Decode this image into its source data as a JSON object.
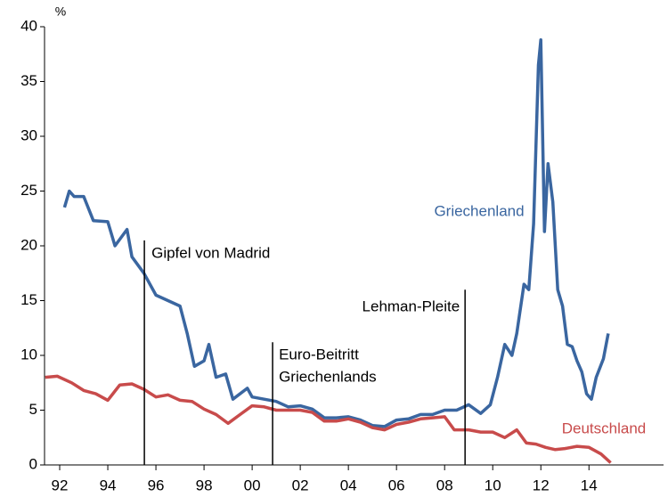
{
  "chart_data": {
    "type": "line",
    "y_label": "%",
    "xlim": [
      1991.37,
      2017.1
    ],
    "ylim": [
      0,
      40
    ],
    "yticks": [
      0,
      5,
      10,
      15,
      20,
      25,
      30,
      35,
      40
    ],
    "xticks": [
      {
        "value": 1992,
        "label": "92"
      },
      {
        "value": 1994,
        "label": "94"
      },
      {
        "value": 1996,
        "label": "96"
      },
      {
        "value": 1998,
        "label": "98"
      },
      {
        "value": 2000,
        "label": "00"
      },
      {
        "value": 2002,
        "label": "02"
      },
      {
        "value": 2004,
        "label": "04"
      },
      {
        "value": 2006,
        "label": "06"
      },
      {
        "value": 2008,
        "label": "08"
      },
      {
        "value": 2010,
        "label": "10"
      },
      {
        "value": 2012,
        "label": "12"
      },
      {
        "value": 2014,
        "label": "14"
      }
    ],
    "series": [
      {
        "name": "Griechenland",
        "color": "#3a66a0",
        "x": [
          1992.2,
          1992.4,
          1992.6,
          1993,
          1993.4,
          1994,
          1994.3,
          1994.8,
          1995,
          1995.5,
          1996,
          1996.5,
          1997,
          1997.3,
          1997.6,
          1998,
          1998.2,
          1998.5,
          1998.9,
          1999.2,
          1999.8,
          2000,
          2000.5,
          2001,
          2001.5,
          2002,
          2002.5,
          2003,
          2003.5,
          2004,
          2004.5,
          2005,
          2005.5,
          2006,
          2006.5,
          2007,
          2007.5,
          2008,
          2008.5,
          2009,
          2009.5,
          2009.9,
          2010.2,
          2010.5,
          2010.8,
          2011,
          2011.3,
          2011.5,
          2011.7,
          2011.9,
          2012.0,
          2012.15,
          2012.3,
          2012.5,
          2012.7,
          2012.9,
          2013.1,
          2013.3,
          2013.5,
          2013.7,
          2013.9,
          2014.1,
          2014.3,
          2014.6,
          2014.8
        ],
        "values": [
          23.5,
          25,
          24.5,
          24.5,
          22.3,
          22.2,
          20,
          21.5,
          19,
          17.5,
          15.5,
          15,
          14.5,
          12,
          9,
          9.5,
          11,
          8,
          8.3,
          6,
          7,
          6.2,
          6,
          5.8,
          5.3,
          5.4,
          5.1,
          4.3,
          4.3,
          4.4,
          4.1,
          3.6,
          3.5,
          4.1,
          4.2,
          4.6,
          4.6,
          5,
          5,
          5.5,
          4.7,
          5.5,
          8,
          11,
          10,
          12,
          16.5,
          16,
          22,
          36.5,
          38.8,
          21.3,
          27.5,
          24,
          16,
          14.5,
          11,
          10.8,
          9.5,
          8.5,
          6.5,
          6,
          8,
          9.7,
          12
        ]
      },
      {
        "name": "Deutschland",
        "color": "#c84b4b",
        "x": [
          1991.4,
          1991.9,
          1992.5,
          1993,
          1993.5,
          1994,
          1994.5,
          1995,
          1995.5,
          1996,
          1996.5,
          1997,
          1997.5,
          1998,
          1998.5,
          1999,
          1999.5,
          2000,
          2000.5,
          2001,
          2001.5,
          2002,
          2002.5,
          2003,
          2003.5,
          2004,
          2004.5,
          2005,
          2005.5,
          2006,
          2006.5,
          2007,
          2007.5,
          2008,
          2008.4,
          2009,
          2009.5,
          2010,
          2010.5,
          2011,
          2011.4,
          2011.8,
          2012.2,
          2012.6,
          2013,
          2013.5,
          2014,
          2014.5,
          2014.9
        ],
        "values": [
          8,
          8.1,
          7.5,
          6.8,
          6.5,
          5.9,
          7.3,
          7.4,
          6.9,
          6.2,
          6.4,
          5.9,
          5.8,
          5.1,
          4.6,
          3.8,
          4.6,
          5.4,
          5.3,
          5.0,
          5.0,
          5.0,
          4.8,
          4.0,
          4.0,
          4.2,
          3.9,
          3.4,
          3.2,
          3.7,
          3.9,
          4.2,
          4.3,
          4.4,
          3.2,
          3.2,
          3.0,
          3.0,
          2.5,
          3.2,
          2.0,
          1.9,
          1.6,
          1.4,
          1.5,
          1.7,
          1.6,
          1.0,
          0.2
        ]
      }
    ],
    "events": [
      {
        "lines": [
          "Gipfel von Madrid"
        ],
        "x": 1995.52,
        "top": 20.5
      },
      {
        "lines": [
          "Euro-Beitritt",
          "Griechenlands"
        ],
        "x": 2000.85,
        "top": 11.2
      },
      {
        "lines": [
          "Lehman-Pleite"
        ],
        "x": 2008.85,
        "top": 16
      }
    ]
  }
}
